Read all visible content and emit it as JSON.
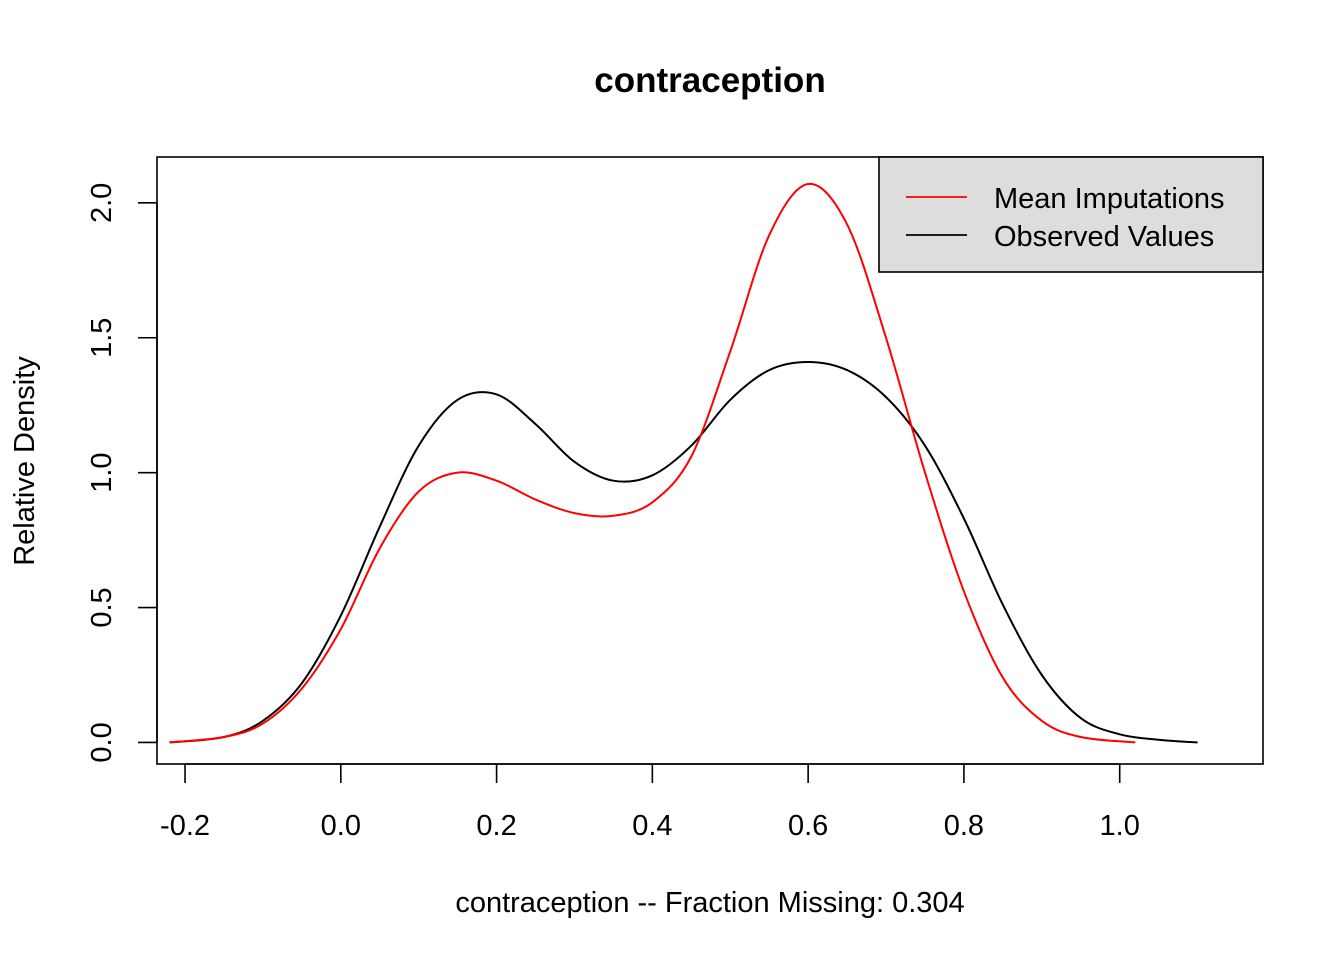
{
  "chart_data": {
    "type": "line",
    "title": "contraception",
    "xlabel": "contraception   --  Fraction Missing: 0.304",
    "ylabel": "Relative Density",
    "xlim": [
      -0.236,
      1.184
    ],
    "ylim": [
      -0.08,
      2.17
    ],
    "xticks": [
      -0.2,
      0.0,
      0.2,
      0.4,
      0.6,
      0.8,
      1.0
    ],
    "xtick_labels": [
      "-0.2",
      "0.0",
      "0.2",
      "0.4",
      "0.6",
      "0.8",
      "1.0"
    ],
    "yticks": [
      0.0,
      0.5,
      1.0,
      1.5,
      2.0
    ],
    "ytick_labels": [
      "0.0",
      "0.5",
      "1.0",
      "1.5",
      "2.0"
    ],
    "legend": {
      "position": "top-right",
      "background": "#dddddd"
    },
    "series": [
      {
        "name": "Mean Imputations",
        "color": "#ff0000",
        "x": [
          -0.22,
          -0.15,
          -0.1,
          -0.05,
          0.0,
          0.05,
          0.1,
          0.15,
          0.2,
          0.25,
          0.3,
          0.35,
          0.4,
          0.45,
          0.5,
          0.55,
          0.6,
          0.65,
          0.7,
          0.75,
          0.8,
          0.85,
          0.9,
          0.95,
          1.02
        ],
        "y": [
          0.0,
          0.02,
          0.07,
          0.2,
          0.42,
          0.72,
          0.93,
          1.0,
          0.97,
          0.9,
          0.85,
          0.84,
          0.89,
          1.06,
          1.45,
          1.88,
          2.07,
          1.92,
          1.5,
          1.0,
          0.56,
          0.24,
          0.08,
          0.02,
          0.0
        ]
      },
      {
        "name": "Observed Values",
        "color": "#000000",
        "x": [
          -0.22,
          -0.15,
          -0.1,
          -0.05,
          0.0,
          0.05,
          0.1,
          0.15,
          0.2,
          0.25,
          0.3,
          0.35,
          0.4,
          0.45,
          0.5,
          0.55,
          0.6,
          0.65,
          0.7,
          0.75,
          0.8,
          0.85,
          0.9,
          0.95,
          1.0,
          1.05,
          1.1
        ],
        "y": [
          0.0,
          0.02,
          0.08,
          0.22,
          0.47,
          0.8,
          1.1,
          1.27,
          1.29,
          1.18,
          1.04,
          0.97,
          0.99,
          1.1,
          1.27,
          1.38,
          1.41,
          1.38,
          1.28,
          1.1,
          0.83,
          0.51,
          0.25,
          0.09,
          0.03,
          0.01,
          0.0
        ]
      }
    ]
  }
}
